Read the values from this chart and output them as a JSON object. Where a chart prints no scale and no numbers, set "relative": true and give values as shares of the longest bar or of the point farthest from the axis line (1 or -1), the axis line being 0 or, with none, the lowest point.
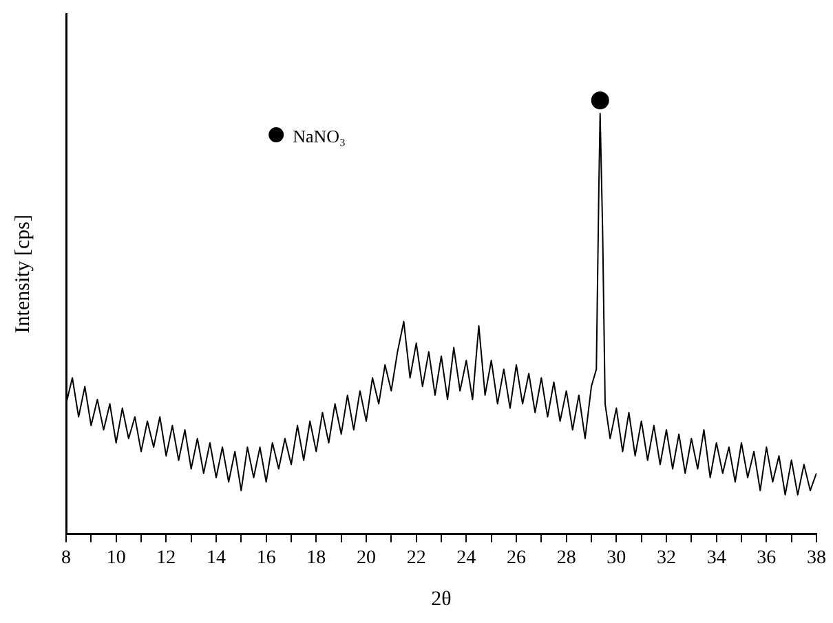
{
  "chart_data": {
    "type": "line",
    "relative": true,
    "xlabel": "2θ",
    "ylabel": "Intensity [cps]",
    "xlim": [
      8,
      38
    ],
    "xticks": [
      8,
      {
        "value": 9,
        "label": null
      },
      10,
      {
        "value": 11,
        "label": null
      },
      12,
      {
        "value": 13,
        "label": null
      },
      14,
      {
        "value": 15,
        "label": null
      },
      16,
      {
        "value": 17,
        "label": null
      },
      18,
      {
        "value": 19,
        "label": null
      },
      20,
      {
        "value": 21,
        "label": null
      },
      22,
      {
        "value": 23,
        "label": null
      },
      24,
      {
        "value": 25,
        "label": null
      },
      26,
      {
        "value": 27,
        "label": null
      },
      28,
      {
        "value": 29,
        "label": null
      },
      30,
      {
        "value": 31,
        "label": null
      },
      32,
      {
        "value": 33,
        "label": null
      },
      34,
      {
        "value": 35,
        "label": null
      },
      36,
      {
        "value": 37,
        "label": null
      },
      38
    ],
    "grid": false,
    "legend": "top left",
    "series": [
      {
        "color": "#000000",
        "marker": "none",
        "x": [
          8,
          8.25,
          8.5,
          8.75,
          9,
          9.25,
          9.5,
          9.75,
          10,
          10.25,
          10.5,
          10.75,
          11,
          11.25,
          11.5,
          11.75,
          12,
          12.25,
          12.5,
          12.75,
          13,
          13.25,
          13.5,
          13.75,
          14,
          14.25,
          14.5,
          14.75,
          15,
          15.25,
          15.5,
          15.75,
          16,
          16.25,
          16.5,
          16.75,
          17,
          17.25,
          17.5,
          17.75,
          18,
          18.25,
          18.5,
          18.75,
          19,
          19.25,
          19.5,
          19.75,
          20,
          20.25,
          20.5,
          20.75,
          21,
          21.25,
          21.5,
          21.75,
          22,
          22.25,
          22.5,
          22.75,
          23,
          23.25,
          23.5,
          23.75,
          24,
          24.25,
          24.5,
          24.75,
          25,
          25.25,
          25.5,
          25.75,
          26,
          26.25,
          26.5,
          26.75,
          27,
          27.25,
          27.5,
          27.75,
          28,
          28.25,
          28.5,
          28.75,
          29,
          29.2,
          29.3,
          29.35,
          29.45,
          29.55,
          29.75,
          30,
          30.25,
          30.5,
          30.75,
          31,
          31.25,
          31.5,
          31.75,
          32,
          32.25,
          32.5,
          32.75,
          33,
          33.25,
          33.5,
          33.75,
          34,
          34.25,
          34.5,
          34.75,
          35,
          35.25,
          35.5,
          35.75,
          36,
          36.25,
          36.5,
          36.75,
          37,
          37.25,
          37.5,
          37.75,
          38
        ],
        "values": [
          0.3,
          0.36,
          0.27,
          0.34,
          0.25,
          0.31,
          0.24,
          0.3,
          0.21,
          0.29,
          0.22,
          0.27,
          0.19,
          0.26,
          0.2,
          0.27,
          0.18,
          0.25,
          0.17,
          0.24,
          0.15,
          0.22,
          0.14,
          0.21,
          0.13,
          0.2,
          0.12,
          0.19,
          0.1,
          0.2,
          0.13,
          0.2,
          0.12,
          0.21,
          0.15,
          0.22,
          0.16,
          0.25,
          0.17,
          0.26,
          0.19,
          0.28,
          0.21,
          0.3,
          0.23,
          0.32,
          0.24,
          0.33,
          0.26,
          0.36,
          0.3,
          0.39,
          0.33,
          0.42,
          0.49,
          0.36,
          0.44,
          0.34,
          0.42,
          0.32,
          0.41,
          0.31,
          0.43,
          0.33,
          0.4,
          0.31,
          0.48,
          0.32,
          0.4,
          0.3,
          0.38,
          0.29,
          0.39,
          0.3,
          0.37,
          0.28,
          0.36,
          0.27,
          0.35,
          0.26,
          0.33,
          0.24,
          0.32,
          0.22,
          0.34,
          0.38,
          0.8,
          0.97,
          0.7,
          0.3,
          0.22,
          0.29,
          0.19,
          0.28,
          0.18,
          0.26,
          0.17,
          0.25,
          0.16,
          0.24,
          0.15,
          0.23,
          0.14,
          0.22,
          0.15,
          0.24,
          0.13,
          0.21,
          0.14,
          0.2,
          0.12,
          0.21,
          0.13,
          0.19,
          0.1,
          0.2,
          0.12,
          0.18,
          0.09,
          0.17,
          0.09,
          0.16,
          0.1,
          0.14
        ]
      },
      {
        "type": "scatter",
        "name": "NaNO₃",
        "color": "#000000",
        "marker": "circle",
        "x": [
          29.35
        ],
        "values": [
          1.0
        ]
      }
    ]
  }
}
